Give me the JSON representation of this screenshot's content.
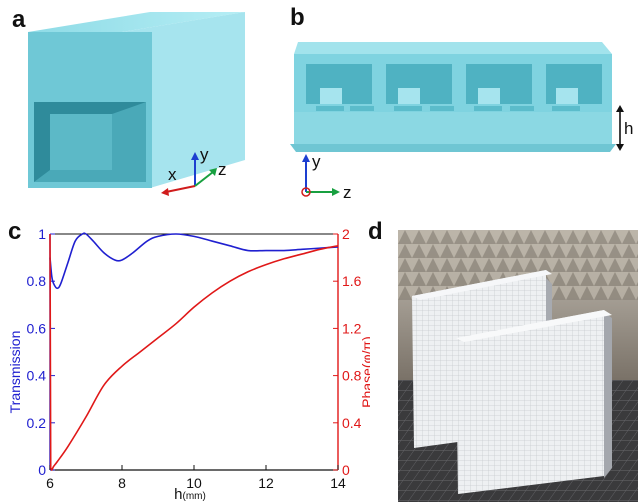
{
  "panels": {
    "a": {
      "label": "a",
      "axes": {
        "x": "x",
        "y": "y",
        "z": "z"
      }
    },
    "b": {
      "label": "b",
      "axes": {
        "y": "y",
        "z": "z"
      },
      "dimension_label": "h"
    },
    "c": {
      "label": "c"
    },
    "d": {
      "label": "d"
    }
  },
  "colors": {
    "structure": "#7fd3e0",
    "structure_dark": "#5bbccb",
    "transmission": "#2020d0",
    "phase": "#e01818"
  },
  "chart_data": {
    "type": "line",
    "xlabel": "h",
    "xlabel_unit": "(mm)",
    "ylabel_left": "Transmission",
    "ylabel_right": "Phase(φ/π)",
    "xlim": [
      6,
      14
    ],
    "ylim_left": [
      0,
      1
    ],
    "ylim_right": [
      0,
      2
    ],
    "x_ticks": [
      "6",
      "8",
      "10",
      "12",
      "14"
    ],
    "y_ticks_left": [
      "0",
      "0.2",
      "0.4",
      "0.6",
      "0.8",
      "1"
    ],
    "y_ticks_right": [
      "0",
      "0.4",
      "0.8",
      "1.2",
      "1.6",
      "2"
    ],
    "series": [
      {
        "name": "Transmission",
        "axis": "left",
        "x": [
          6.0,
          6.05,
          6.1,
          6.2,
          6.3,
          6.5,
          6.7,
          6.9,
          7.0,
          7.2,
          7.5,
          7.8,
          8.0,
          8.3,
          8.7,
          9.0,
          9.5,
          10.0,
          10.5,
          11.0,
          11.5,
          12.0,
          12.5,
          13.0,
          13.5,
          14.0
        ],
        "y": [
          0.9,
          0.82,
          0.79,
          0.77,
          0.79,
          0.88,
          0.97,
          1.0,
          1.0,
          0.97,
          0.92,
          0.89,
          0.89,
          0.92,
          0.97,
          0.99,
          1.0,
          0.99,
          0.97,
          0.95,
          0.93,
          0.93,
          0.93,
          0.935,
          0.94,
          0.945
        ]
      },
      {
        "name": "Phase",
        "axis": "right",
        "x": [
          6.0,
          6.02,
          6.05,
          6.1,
          6.2,
          6.5,
          7.0,
          7.5,
          8.0,
          8.5,
          9.0,
          9.5,
          10.0,
          10.5,
          11.0,
          11.5,
          12.0,
          12.5,
          13.0,
          13.5,
          14.0
        ],
        "y": [
          2.0,
          0.02,
          0.0,
          0.03,
          0.07,
          0.2,
          0.45,
          0.72,
          0.88,
          1.0,
          1.12,
          1.24,
          1.38,
          1.5,
          1.6,
          1.68,
          1.74,
          1.79,
          1.83,
          1.87,
          1.9
        ]
      }
    ],
    "grid": false
  }
}
